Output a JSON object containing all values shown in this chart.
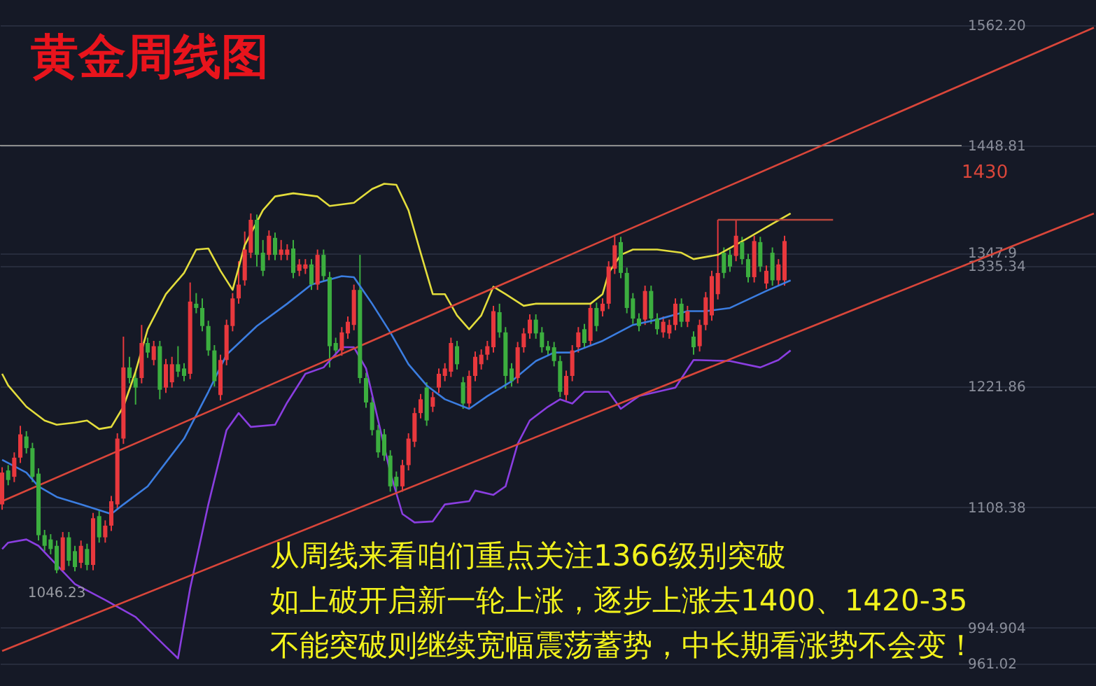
{
  "chart_data": {
    "type": "candlestick",
    "title": "黄金周线图",
    "categories": [
      null,
      null,
      null,
      null,
      null,
      null,
      null,
      null,
      null,
      null,
      null,
      null,
      null,
      null,
      null,
      null,
      null,
      null,
      null,
      null,
      null,
      null,
      null,
      null,
      null,
      null,
      null,
      null,
      null,
      null,
      null,
      null,
      null,
      null,
      null,
      null,
      null,
      null,
      null,
      null,
      null,
      null,
      null,
      null,
      null,
      null,
      null,
      null,
      null,
      null,
      null,
      null,
      null,
      null,
      null,
      null,
      null,
      null,
      null,
      null,
      null,
      null,
      null,
      null,
      null,
      null,
      null,
      null,
      null,
      null,
      null,
      null,
      null,
      null,
      null,
      null,
      null,
      null,
      null,
      null,
      null,
      null,
      null,
      null,
      null,
      null,
      null,
      null,
      null,
      null,
      null,
      null,
      null,
      null,
      null,
      null,
      null,
      null,
      null,
      null,
      null,
      null,
      null,
      null,
      null,
      null,
      null,
      null,
      null,
      null,
      null,
      null,
      null,
      null,
      null,
      null,
      null,
      null,
      null,
      null,
      null,
      null,
      null,
      null,
      null,
      null,
      null,
      null,
      null,
      null,
      null,
      null,
      null,
      null,
      null,
      null,
      null,
      null,
      null,
      null,
      null,
      null,
      null,
      null,
      null,
      null,
      null,
      null,
      null,
      null,
      null,
      null,
      null,
      null,
      null,
      null,
      null,
      null,
      null,
      null,
      null,
      null,
      null,
      null,
      null,
      null,
      null,
      null,
      null,
      null,
      null,
      null,
      null,
      null,
      null,
      null,
      null,
      null,
      null,
      null,
      null
    ],
    "ohlc": [
      [
        1111,
        1146,
        1106,
        1141
      ],
      [
        1143,
        1148,
        1129,
        1134
      ],
      [
        1137,
        1160,
        1132,
        1155
      ],
      [
        1155,
        1185,
        1150,
        1177
      ],
      [
        1175,
        1180,
        1159,
        1164
      ],
      [
        1164,
        1169,
        1132,
        1137
      ],
      [
        1140,
        1145,
        1077,
        1082
      ],
      [
        1082,
        1087,
        1067,
        1072
      ],
      [
        1078,
        1083,
        1064,
        1069
      ],
      [
        1072,
        1077,
        1046.23,
        1049
      ],
      [
        1049,
        1085,
        1048,
        1080
      ],
      [
        1080,
        1085,
        1053,
        1058
      ],
      [
        1067,
        1072,
        1048,
        1052
      ],
      [
        1056,
        1077,
        1051,
        1072
      ],
      [
        1069,
        1074,
        1049,
        1054
      ],
      [
        1054,
        1103,
        1049,
        1098
      ],
      [
        1100,
        1105,
        1075,
        1080
      ],
      [
        1080,
        1096,
        1075,
        1091
      ],
      [
        1091,
        1119,
        1086,
        1114
      ],
      [
        1111,
        1178,
        1106,
        1173
      ],
      [
        1173,
        1269,
        1168,
        1240
      ],
      [
        1240,
        1250,
        1225,
        1230
      ],
      [
        1230,
        1235,
        1205,
        1221
      ],
      [
        1230,
        1280,
        1225,
        1263
      ],
      [
        1263,
        1268,
        1249,
        1254
      ],
      [
        1247,
        1265,
        1242,
        1260
      ],
      [
        1260,
        1265,
        1210,
        1219
      ],
      [
        1221,
        1248,
        1216,
        1243
      ],
      [
        1226,
        1250,
        1221,
        1243
      ],
      [
        1243,
        1260,
        1231,
        1236
      ],
      [
        1239,
        1244,
        1227,
        1232
      ],
      [
        1234,
        1320,
        1229,
        1302
      ],
      [
        1300,
        1310,
        1291,
        1296
      ],
      [
        1296,
        1305,
        1274,
        1279
      ],
      [
        1279,
        1284,
        1251,
        1256
      ],
      [
        1256,
        1261,
        1222,
        1227
      ],
      [
        1214,
        1252,
        1209,
        1247
      ],
      [
        1247,
        1285,
        1242,
        1280
      ],
      [
        1279,
        1310,
        1274,
        1305
      ],
      [
        1305,
        1340,
        1300,
        1318
      ],
      [
        1322,
        1368,
        1317,
        1351
      ],
      [
        1348,
        1385,
        1343,
        1379
      ],
      [
        1379,
        1384,
        1335,
        1346
      ],
      [
        1348,
        1360,
        1326,
        1331
      ],
      [
        1346,
        1369,
        1341,
        1364
      ],
      [
        1362,
        1367,
        1341,
        1346
      ],
      [
        1346,
        1360,
        1341,
        1351
      ],
      [
        1346,
        1356,
        1341,
        1351
      ],
      [
        1352,
        1360,
        1324,
        1329
      ],
      [
        1331,
        1342,
        1326,
        1337
      ],
      [
        1333,
        1342,
        1328,
        1337
      ],
      [
        1337,
        1342,
        1313,
        1318
      ],
      [
        1318,
        1351,
        1313,
        1346
      ],
      [
        1346,
        1351,
        1321,
        1326
      ],
      [
        1325,
        1330,
        1240,
        1260
      ],
      [
        1263,
        1268,
        1251,
        1256
      ],
      [
        1256,
        1278,
        1251,
        1273
      ],
      [
        1272,
        1288,
        1267,
        1283
      ],
      [
        1280,
        1318,
        1275,
        1313
      ],
      [
        1313,
        1346,
        1225,
        1230
      ],
      [
        1230,
        1235,
        1202,
        1207
      ],
      [
        1207,
        1212,
        1176,
        1181
      ],
      [
        1181,
        1186,
        1155,
        1160
      ],
      [
        1177,
        1182,
        1152,
        1157
      ],
      [
        1157,
        1162,
        1123,
        1128
      ],
      [
        1137,
        1142,
        1123,
        1128
      ],
      [
        1128,
        1153,
        1123,
        1148
      ],
      [
        1148,
        1178,
        1143,
        1173
      ],
      [
        1170,
        1202,
        1165,
        1197
      ],
      [
        1197,
        1215,
        1192,
        1210
      ],
      [
        1221,
        1226,
        1185,
        1190
      ],
      [
        1203,
        1217,
        1198,
        1212
      ],
      [
        1221,
        1239,
        1216,
        1234
      ],
      [
        1232,
        1244,
        1227,
        1239
      ],
      [
        1236,
        1268,
        1231,
        1263
      ],
      [
        1260,
        1265,
        1238,
        1243
      ],
      [
        1226,
        1231,
        1201,
        1206
      ],
      [
        1206,
        1237,
        1201,
        1232
      ],
      [
        1232,
        1255,
        1227,
        1250
      ],
      [
        1243,
        1257,
        1238,
        1252
      ],
      [
        1252,
        1265,
        1247,
        1260
      ],
      [
        1259,
        1298,
        1254,
        1293
      ],
      [
        1292,
        1300,
        1268,
        1273
      ],
      [
        1273,
        1278,
        1220,
        1232
      ],
      [
        1239,
        1244,
        1222,
        1227
      ],
      [
        1230,
        1264,
        1225,
        1259
      ],
      [
        1259,
        1277,
        1254,
        1272
      ],
      [
        1272,
        1290,
        1267,
        1285
      ],
      [
        1285,
        1290,
        1267,
        1272
      ],
      [
        1273,
        1278,
        1254,
        1259
      ],
      [
        1260,
        1265,
        1251,
        1256
      ],
      [
        1259,
        1264,
        1241,
        1246
      ],
      [
        1246,
        1251,
        1212,
        1217
      ],
      [
        1214,
        1237,
        1209,
        1232
      ],
      [
        1232,
        1261,
        1227,
        1256
      ],
      [
        1259,
        1278,
        1254,
        1273
      ],
      [
        1276,
        1281,
        1258,
        1263
      ],
      [
        1265,
        1301,
        1260,
        1296
      ],
      [
        1296,
        1301,
        1274,
        1279
      ],
      [
        1293,
        1305,
        1288,
        1300
      ],
      [
        1300,
        1340,
        1295,
        1335
      ],
      [
        1333,
        1365,
        1328,
        1355
      ],
      [
        1358,
        1363,
        1324,
        1329
      ],
      [
        1329,
        1334,
        1291,
        1296
      ],
      [
        1305,
        1310,
        1281,
        1286
      ],
      [
        1286,
        1291,
        1274,
        1279
      ],
      [
        1285,
        1317,
        1280,
        1312
      ],
      [
        1312,
        1317,
        1281,
        1286
      ],
      [
        1286,
        1291,
        1271,
        1276
      ],
      [
        1273,
        1288,
        1268,
        1283
      ],
      [
        1272,
        1285,
        1267,
        1280
      ],
      [
        1280,
        1305,
        1275,
        1300
      ],
      [
        1300,
        1305,
        1278,
        1283
      ],
      [
        1283,
        1298,
        1278,
        1293
      ],
      [
        1269,
        1274,
        1252,
        1259
      ],
      [
        1260,
        1285,
        1255,
        1280
      ],
      [
        1280,
        1311,
        1275,
        1306
      ],
      [
        1289,
        1331,
        1284,
        1326
      ],
      [
        1309,
        1379,
        1304,
        1329
      ],
      [
        1348,
        1353,
        1324,
        1329
      ],
      [
        1346,
        1351,
        1330,
        1335
      ],
      [
        1345,
        1379,
        1340,
        1364
      ],
      [
        1358,
        1363,
        1337,
        1342
      ],
      [
        1342,
        1347,
        1320,
        1325
      ],
      [
        1325,
        1364,
        1320,
        1359
      ],
      [
        1358,
        1363,
        1330,
        1335
      ],
      [
        1319,
        1336,
        1314,
        1331
      ],
      [
        1348,
        1353,
        1317,
        1322
      ],
      [
        1322,
        1342,
        1317,
        1337
      ],
      [
        1322,
        1364,
        1317,
        1359
      ],
      null,
      null,
      null,
      null,
      null,
      null,
      null,
      null,
      null,
      null,
      null,
      null,
      null,
      null,
      null,
      null,
      null,
      null,
      null,
      null,
      null,
      null,
      null,
      null,
      null,
      null,
      null,
      null,
      null,
      null,
      null,
      null,
      null,
      null,
      null,
      null,
      null,
      null,
      null,
      null,
      null,
      null,
      null,
      null,
      null,
      null,
      null,
      null,
      null,
      null,
      null
    ],
    "colors": [
      "#e8383d",
      "#3cae3f",
      "#e8383d",
      "#e8383d",
      "#3cae3f",
      "#3cae3f",
      "#3cae3f",
      "#3cae3f",
      "#3cae3f",
      "#3cae3f",
      "#e8383d",
      "#3cae3f",
      "#3cae3f",
      "#e8383d",
      "#3cae3f",
      "#e8383d",
      "#3cae3f",
      "#e8383d",
      "#e8383d",
      "#e8383d",
      "#e8383d",
      "#3cae3f",
      "#3cae3f",
      "#e8383d",
      "#3cae3f",
      "#e8383d",
      "#3cae3f",
      "#e8383d",
      "#e8383d",
      "#3cae3f",
      "#3cae3f",
      "#e8383d",
      "#3cae3f",
      "#3cae3f",
      "#3cae3f",
      "#3cae3f",
      "#e8383d",
      "#e8383d",
      "#e8383d",
      "#e8383d",
      "#e8383d",
      "#e8383d",
      "#3cae3f",
      "#3cae3f",
      "#e8383d",
      "#3cae3f",
      "#e8383d",
      "#e8383d",
      "#3cae3f",
      "#e8383d",
      "#e8383d",
      "#3cae3f",
      "#e8383d",
      "#3cae3f",
      "#3cae3f",
      "#3cae3f",
      "#e8383d",
      "#e8383d",
      "#e8383d",
      "#3cae3f",
      "#3cae3f",
      "#3cae3f",
      "#3cae3f",
      "#3cae3f",
      "#3cae3f",
      "#3cae3f",
      "#e8383d",
      "#e8383d",
      "#e8383d",
      "#e8383d",
      "#3cae3f",
      "#e8383d",
      "#e8383d",
      "#e8383d",
      "#e8383d",
      "#3cae3f",
      "#3cae3f",
      "#e8383d",
      "#e8383d",
      "#e8383d",
      "#e8383d",
      "#e8383d",
      "#3cae3f",
      "#3cae3f",
      "#3cae3f",
      "#e8383d",
      "#e8383d",
      "#e8383d",
      "#3cae3f",
      "#3cae3f",
      "#3cae3f",
      "#3cae3f",
      "#3cae3f",
      "#e8383d",
      "#e8383d",
      "#e8383d",
      "#3cae3f",
      "#e8383d",
      "#3cae3f",
      "#e8383d",
      "#e8383d",
      "#e8383d",
      "#3cae3f",
      "#3cae3f",
      "#3cae3f",
      "#3cae3f",
      "#e8383d",
      "#3cae3f",
      "#3cae3f",
      "#e8383d",
      "#e8383d",
      "#e8383d",
      "#3cae3f",
      "#e8383d",
      "#3cae3f",
      "#e8383d",
      "#e8383d",
      "#e8383d",
      "#e8383d",
      "#3cae3f",
      "#3cae3f",
      "#e8383d",
      "#3cae3f",
      "#3cae3f",
      "#e8383d",
      "#3cae3f",
      "#e8383d",
      "#3cae3f",
      "#e8383d",
      "#e8383d",
      null,
      null,
      null,
      null,
      null,
      null,
      null,
      null,
      null,
      null,
      null,
      null,
      null,
      null,
      null,
      null,
      null,
      null,
      null,
      null,
      null,
      null,
      null,
      null,
      null,
      null,
      null,
      null,
      null,
      null,
      null,
      null,
      null,
      null,
      null,
      null,
      null,
      null,
      null,
      null,
      null,
      null,
      null,
      null,
      null,
      null,
      null,
      null,
      null,
      null,
      null
    ],
    "series": [
      {
        "type": "line",
        "color": "#e3dd3c",
        "values": [
          1234,
          1223,
          null,
          null,
          1203,
          null,
          null,
          1190,
          null,
          1186,
          null,
          null,
          1188,
          null,
          1190,
          null,
          1182,
          null,
          1184,
          null,
          1203,
          null,
          1236,
          null,
          1276,
          null,
          null,
          1309,
          null,
          null,
          1329,
          null,
          1351,
          null,
          1352,
          null,
          1331,
          null,
          1313,
          null,
          1355,
          null,
          null,
          1388,
          null,
          1401,
          null,
          null,
          1404,
          null,
          null,
          null,
          1401,
          null,
          1392,
          null,
          null,
          null,
          1395,
          null,
          null,
          1408,
          null,
          1413,
          null,
          1412,
          null,
          1388,
          null,
          1348,
          null,
          1309,
          null,
          1309,
          null,
          1289,
          null,
          1276,
          null,
          1289,
          null,
          1316,
          null,
          1309,
          null,
          null,
          1298,
          null,
          1300,
          null,
          null,
          1300,
          null,
          null,
          null,
          null,
          null,
          1300,
          null,
          1309,
          1329,
          null,
          1346,
          null,
          1351,
          null,
          null,
          null,
          1351,
          null,
          null,
          null,
          1348,
          null,
          1342,
          null,
          null,
          null,
          1346,
          null,
          null,
          null,
          null,
          1362,
          null,
          null,
          1372,
          null,
          null,
          null,
          1385,
          null,
          null,
          null,
          null,
          null,
          null,
          null,
          null,
          null,
          null,
          null,
          null,
          null,
          null,
          null,
          null,
          null,
          null,
          null,
          null,
          null,
          null,
          null,
          null,
          null,
          null,
          null,
          null,
          null,
          null,
          null,
          null,
          null,
          null,
          null,
          null,
          null,
          null,
          null,
          null,
          null,
          null,
          null,
          null,
          null,
          null,
          null,
          null,
          null,
          null
        ]
      },
      {
        "type": "line",
        "color": "#3b7de0",
        "values": [
          1153,
          null,
          null,
          null,
          1141,
          null,
          1128,
          null,
          null,
          1118,
          null,
          null,
          null,
          1111,
          null,
          null,
          null,
          null,
          1102,
          null,
          1111,
          null,
          null,
          null,
          1128,
          null,
          null,
          null,
          null,
          null,
          1173,
          null,
          null,
          null,
          1217,
          null,
          null,
          1252,
          null,
          null,
          null,
          null,
          1279,
          null,
          null,
          null,
          null,
          1300,
          null,
          null,
          null,
          1318,
          null,
          null,
          null,
          null,
          1326,
          null,
          1325,
          null,
          null,
          1300,
          null,
          null,
          1273,
          null,
          null,
          1243,
          null,
          null,
          1223,
          null,
          null,
          1210,
          null,
          null,
          null,
          1201,
          null,
          null,
          1213,
          null,
          null,
          null,
          1227,
          null,
          null,
          null,
          1246,
          null,
          null,
          1254,
          null,
          null,
          1254,
          null,
          null,
          null,
          null,
          1265,
          null,
          null,
          null,
          null,
          1280,
          null,
          null,
          null,
          1285,
          null,
          null,
          null,
          null,
          1293,
          null,
          null,
          1293,
          null,
          null,
          null,
          1296,
          null,
          null,
          null,
          null,
          null,
          1312,
          null,
          null,
          null,
          1322,
          null,
          null,
          null,
          null,
          null,
          null,
          null,
          null,
          null,
          null,
          null,
          null,
          null,
          null,
          null,
          null,
          null,
          null,
          null,
          null,
          null,
          null,
          null,
          null,
          null,
          null,
          null,
          null,
          null,
          null,
          null,
          null,
          null,
          null,
          null,
          null,
          null,
          null,
          null,
          null,
          null,
          null,
          null,
          null,
          null,
          null,
          null,
          null,
          null,
          null
        ]
      },
      {
        "type": "line",
        "color": "#8a3ee0",
        "values": [
          1069,
          1075,
          null,
          null,
          1078,
          null,
          1072,
          null,
          null,
          1054,
          null,
          null,
          1036,
          null,
          null,
          null,
          null,
          1021,
          null,
          null,
          null,
          null,
          1005,
          null,
          null,
          null,
          null,
          977,
          null,
          966,
          null,
          1032,
          null,
          null,
          1111,
          null,
          null,
          1181,
          null,
          1197,
          null,
          1184,
          null,
          null,
          null,
          1186,
          null,
          1207,
          null,
          null,
          1234,
          null,
          null,
          1240,
          null,
          null,
          1259,
          null,
          1259,
          null,
          1239,
          null,
          1190,
          null,
          1141,
          null,
          1102,
          null,
          1094,
          null,
          null,
          1095,
          null,
          1111,
          null,
          null,
          null,
          1114,
          1124,
          null,
          null,
          1120,
          null,
          1128,
          null,
          1168,
          null,
          1190,
          null,
          null,
          1203,
          null,
          1210,
          null,
          1206,
          null,
          1217,
          null,
          null,
          null,
          1217,
          null,
          1201,
          null,
          null,
          1213,
          null,
          null,
          1217,
          null,
          null,
          1221,
          null,
          null,
          1247,
          null,
          null,
          null,
          null,
          null,
          1246,
          null,
          null,
          null,
          null,
          1240,
          null,
          null,
          1247,
          null,
          1256,
          null,
          null,
          null,
          null,
          null,
          null,
          null,
          null,
          null,
          null,
          null,
          null,
          null,
          null,
          null,
          null,
          null,
          null,
          null,
          null,
          null,
          null,
          null,
          null,
          null,
          null,
          null,
          null,
          null,
          null,
          null,
          null,
          null,
          null,
          null,
          null,
          null,
          null,
          null,
          null,
          null,
          null,
          null,
          null,
          null,
          null,
          null,
          null,
          null,
          null
        ]
      },
      {
        "type": "line",
        "color": "#d9463a",
        "values": [
          1114,
          null,
          null,
          null,
          null,
          null,
          null,
          null,
          null,
          null,
          null,
          null,
          null,
          null,
          null,
          null,
          null,
          null,
          null,
          null,
          null,
          null,
          null,
          null,
          null,
          null,
          null,
          null,
          null,
          null,
          null,
          null,
          null,
          null,
          null,
          null,
          null,
          null,
          null,
          null,
          null,
          null,
          null,
          null,
          null,
          null,
          null,
          null,
          null,
          null,
          null,
          null,
          null,
          null,
          null,
          null,
          null,
          null,
          null,
          null,
          null,
          null,
          null,
          null,
          null,
          null,
          null,
          null,
          null,
          null,
          null,
          null,
          null,
          null,
          null,
          null,
          null,
          null,
          null,
          null,
          null,
          null,
          null,
          null,
          null,
          null,
          null,
          null,
          null,
          null,
          null,
          null,
          null,
          null,
          null,
          null,
          null,
          null,
          null,
          null,
          null,
          null,
          null,
          null,
          null,
          null,
          null,
          null,
          null,
          null,
          null,
          null,
          null,
          null,
          null,
          null,
          null,
          null,
          null,
          null,
          null,
          null,
          null,
          null,
          null,
          null,
          null,
          null,
          null,
          null,
          null,
          null,
          null,
          null,
          null,
          null,
          null,
          null,
          null,
          null,
          null,
          null,
          null,
          null,
          null,
          null,
          null,
          null,
          null,
          null,
          null,
          null,
          null,
          null,
          null,
          null,
          null,
          null,
          null,
          null,
          null,
          null,
          null,
          null,
          null,
          null,
          null,
          null,
          null,
          null,
          null,
          null,
          null,
          null,
          null,
          null,
          null,
          null,
          null,
          null,
          1560
        ]
      },
      {
        "type": "line",
        "color": "#d9463a",
        "values": [
          973,
          null,
          null,
          null,
          null,
          null,
          null,
          null,
          null,
          null,
          null,
          null,
          null,
          null,
          null,
          null,
          null,
          null,
          null,
          null,
          null,
          null,
          null,
          null,
          null,
          null,
          null,
          null,
          null,
          null,
          null,
          null,
          null,
          null,
          null,
          null,
          null,
          null,
          null,
          null,
          null,
          null,
          null,
          null,
          null,
          null,
          null,
          null,
          null,
          null,
          null,
          null,
          null,
          null,
          null,
          null,
          null,
          null,
          null,
          null,
          null,
          null,
          null,
          null,
          null,
          null,
          null,
          null,
          null,
          null,
          null,
          null,
          null,
          null,
          null,
          null,
          null,
          null,
          null,
          null,
          null,
          null,
          null,
          null,
          null,
          null,
          null,
          null,
          null,
          null,
          null,
          null,
          null,
          null,
          null,
          null,
          null,
          null,
          null,
          null,
          null,
          null,
          null,
          null,
          null,
          null,
          null,
          null,
          null,
          null,
          null,
          null,
          null,
          null,
          null,
          null,
          null,
          null,
          null,
          null,
          null,
          null,
          null,
          null,
          null,
          null,
          null,
          null,
          null,
          null,
          null,
          null,
          null,
          null,
          null,
          null,
          null,
          null,
          null,
          null,
          null,
          null,
          null,
          null,
          null,
          null,
          null,
          null,
          null,
          null,
          null,
          null,
          null,
          null,
          null,
          null,
          null,
          null,
          null,
          null,
          null,
          null,
          null,
          null,
          null,
          null,
          null,
          null,
          null,
          null,
          null,
          null,
          null,
          null,
          null,
          null,
          null,
          null,
          null,
          null,
          1385
        ]
      },
      {
        "type": "line",
        "color": "#b8473c",
        "values": [
          null,
          null,
          null,
          null,
          null,
          null,
          null,
          null,
          null,
          null,
          null,
          null,
          null,
          null,
          null,
          null,
          null,
          null,
          null,
          null,
          null,
          null,
          null,
          null,
          null,
          null,
          null,
          null,
          null,
          null,
          null,
          null,
          null,
          null,
          null,
          null,
          null,
          null,
          null,
          null,
          null,
          null,
          null,
          null,
          null,
          null,
          null,
          null,
          null,
          null,
          null,
          null,
          null,
          null,
          null,
          null,
          null,
          null,
          null,
          null,
          null,
          null,
          null,
          null,
          null,
          null,
          null,
          null,
          null,
          null,
          null,
          null,
          null,
          null,
          null,
          null,
          null,
          null,
          null,
          null,
          null,
          null,
          null,
          null,
          null,
          null,
          null,
          null,
          null,
          null,
          null,
          null,
          null,
          null,
          null,
          null,
          null,
          null,
          null,
          null,
          null,
          null,
          null,
          null,
          null,
          null,
          null,
          null,
          null,
          null,
          null,
          null,
          null,
          null,
          null,
          null,
          null,
          null,
          1379,
          null,
          null,
          null,
          null,
          null,
          null,
          null,
          null,
          null,
          null,
          null,
          null,
          null,
          null,
          null,
          null,
          null,
          null,
          1379,
          null,
          null,
          null,
          null,
          null,
          null,
          null,
          null,
          null,
          null,
          null,
          null,
          null,
          null,
          null,
          null,
          null,
          null,
          null,
          null,
          null,
          null,
          null,
          null,
          null,
          null,
          null,
          null,
          null,
          null,
          null,
          null,
          null,
          null,
          null,
          null,
          null,
          null,
          null,
          null,
          null,
          null,
          null
        ]
      }
    ],
    "ref_lines": [
      {
        "axis": "y",
        "value": 1448.81,
        "color": "#8c8c8c"
      }
    ],
    "ylim": [
      940,
      1586
    ],
    "yticks": [
      {
        "value": 1562.2,
        "label": "1562.20"
      },
      1448.81,
      1347.9,
      1335.34,
      1221.86,
      1108.38,
      994.904,
      961.02
    ],
    "grid": "y",
    "tick_labels": "y",
    "annotations": [
      {
        "text": "1046.23",
        "y": 1046.23
      },
      "1430",
      "从周线来看咱们重点关注1366级别突破",
      "如上破开启新一轮上涨，逐步上涨去1400、1420-35",
      "不能突破则继续宽幅震荡蓄势，中长期看涨势不会变！"
    ]
  }
}
